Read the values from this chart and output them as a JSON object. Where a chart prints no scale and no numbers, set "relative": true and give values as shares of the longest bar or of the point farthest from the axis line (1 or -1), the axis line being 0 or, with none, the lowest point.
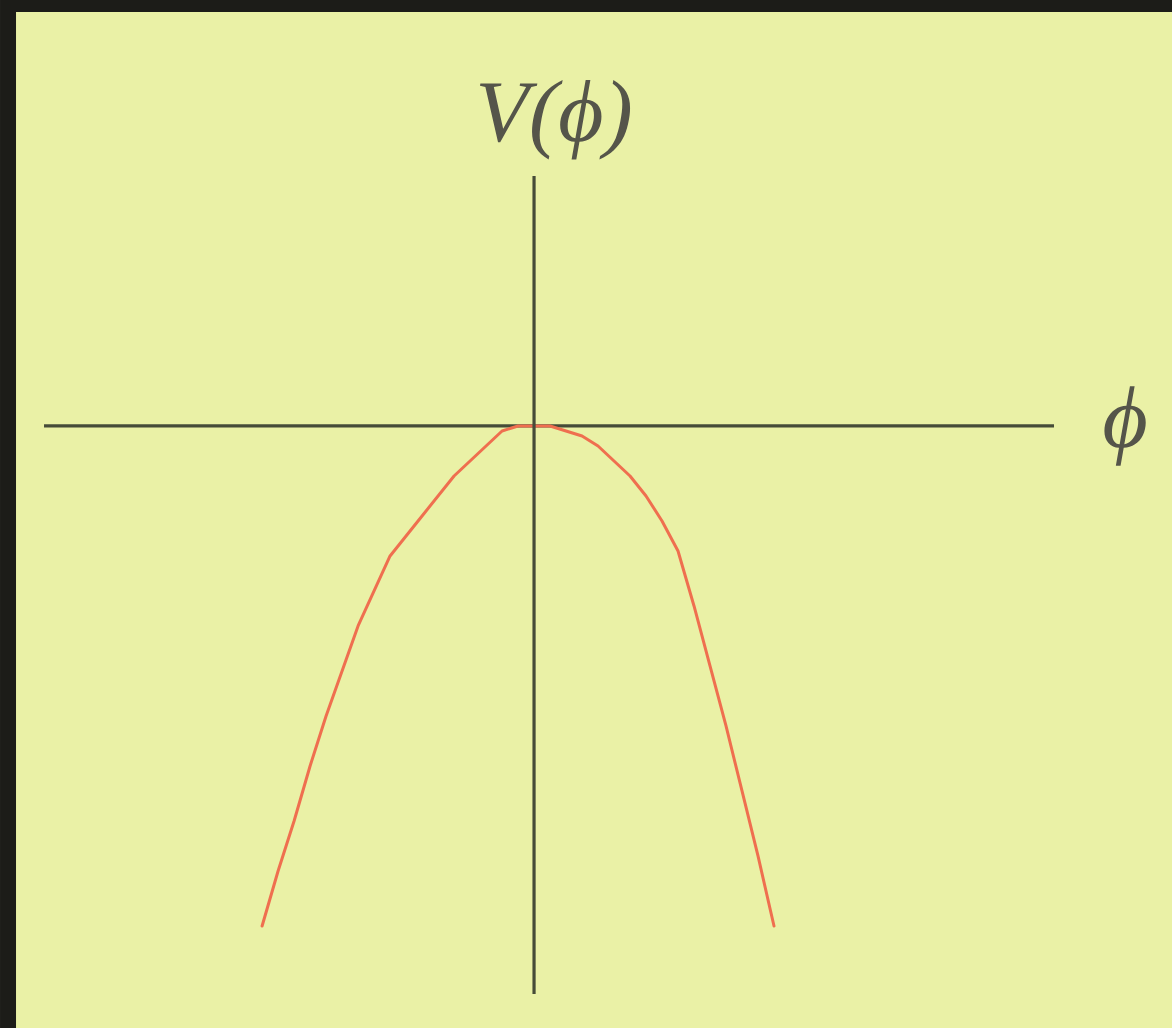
{
  "chart_data": {
    "type": "line",
    "xlabel": "ϕ",
    "ylabel": "V(ϕ)",
    "relative": true,
    "categories": [
      null,
      null,
      null,
      null,
      null,
      null,
      null,
      null,
      null,
      null,
      null,
      null,
      null,
      null,
      null,
      null,
      null,
      null,
      null,
      null,
      null,
      null,
      null,
      null,
      null,
      null,
      null,
      null,
      null,
      null,
      null,
      null,
      null
    ],
    "values": [
      -1.0,
      -0.89,
      -0.79,
      -0.68,
      -0.58,
      -0.49,
      -0.4,
      -0.33,
      -0.26,
      -0.22,
      -0.18,
      -0.14,
      -0.1,
      -0.07,
      -0.04,
      -0.01,
      0,
      0,
      0,
      -0.01,
      -0.02,
      -0.04,
      -0.07,
      -0.1,
      -0.14,
      -0.19,
      -0.25,
      -0.36,
      -0.48,
      -0.6,
      -0.73,
      -0.86,
      -1.0
    ],
    "color": "#ef6f4f"
  }
}
